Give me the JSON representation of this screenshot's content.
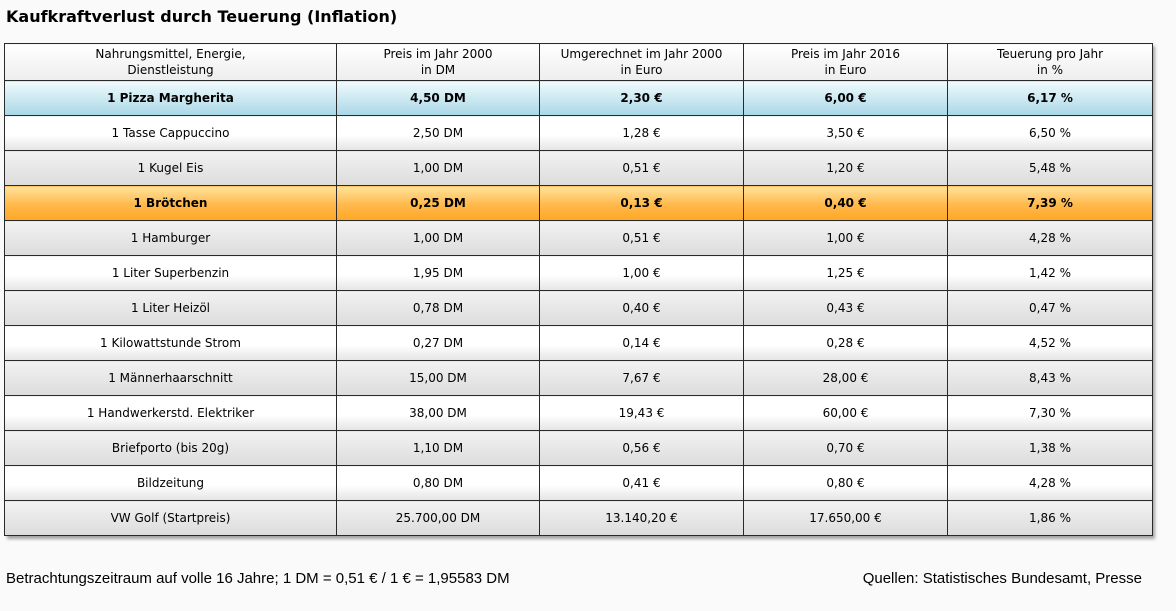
{
  "title": "Kaufkraftverlust durch Teuerung (Inflation)",
  "table": {
    "headers": [
      {
        "line1": "Nahrungsmittel, Energie,",
        "line2": "Dienstleistung"
      },
      {
        "line1": "Preis im Jahr 2000",
        "line2": "in DM"
      },
      {
        "line1": "Umgerechnet im Jahr 2000",
        "line2": "in Euro"
      },
      {
        "line1": "Preis im Jahr 2016",
        "line2": "in Euro"
      },
      {
        "line1": "Teuerung pro Jahr",
        "line2": "in %"
      }
    ],
    "rows": [
      {
        "style": "blue",
        "cells": [
          "1 Pizza Margherita",
          "4,50 DM",
          "2,30 €",
          "6,00 €",
          "6,17 %"
        ]
      },
      {
        "style": "plain",
        "cells": [
          "1 Tasse Cappuccino",
          "2,50 DM",
          "1,28 €",
          "3,50 €",
          "6,50 %"
        ]
      },
      {
        "style": "alt",
        "cells": [
          "1 Kugel Eis",
          "1,00 DM",
          "0,51 €",
          "1,20 €",
          "5,48 %"
        ]
      },
      {
        "style": "orange",
        "cells": [
          "1 Brötchen",
          "0,25 DM",
          "0,13 €",
          "0,40 €",
          "7,39 %"
        ]
      },
      {
        "style": "alt",
        "cells": [
          "1 Hamburger",
          "1,00 DM",
          "0,51 €",
          "1,00 €",
          "4,28 %"
        ]
      },
      {
        "style": "plain",
        "cells": [
          "1 Liter Superbenzin",
          "1,95 DM",
          "1,00 €",
          "1,25 €",
          "1,42 %"
        ]
      },
      {
        "style": "alt",
        "cells": [
          "1 Liter Heizöl",
          "0,78 DM",
          "0,40 €",
          "0,43 €",
          "0,47 %"
        ]
      },
      {
        "style": "plain",
        "cells": [
          "1 Kilowattstunde Strom",
          "0,27 DM",
          "0,14 €",
          "0,28 €",
          "4,52 %"
        ]
      },
      {
        "style": "alt",
        "cells": [
          "1 Männerhaarschnitt",
          "15,00 DM",
          "7,67 €",
          "28,00 €",
          "8,43 %"
        ]
      },
      {
        "style": "plain",
        "cells": [
          "1 Handwerkerstd. Elektriker",
          "38,00 DM",
          "19,43 €",
          "60,00 €",
          "7,30 %"
        ]
      },
      {
        "style": "alt",
        "cells": [
          "Briefporto (bis 20g)",
          "1,10 DM",
          "0,56 €",
          "0,70 €",
          "1,38 %"
        ]
      },
      {
        "style": "plain",
        "cells": [
          "Bildzeitung",
          "0,80 DM",
          "0,41 €",
          "0,80 €",
          "4,28 %"
        ]
      },
      {
        "style": "alt",
        "cells": [
          "VW Golf (Startpreis)",
          "25.700,00 DM",
          "13.140,20 €",
          "17.650,00 €",
          "1,86 %"
        ]
      }
    ]
  },
  "footer": {
    "left": "Betrachtungszeitraum auf volle 16 Jahre; 1 DM = 0,51 € / 1 € = 1,95583 DM",
    "right": "Quellen: Statistisches Bundesamt, Presse"
  }
}
